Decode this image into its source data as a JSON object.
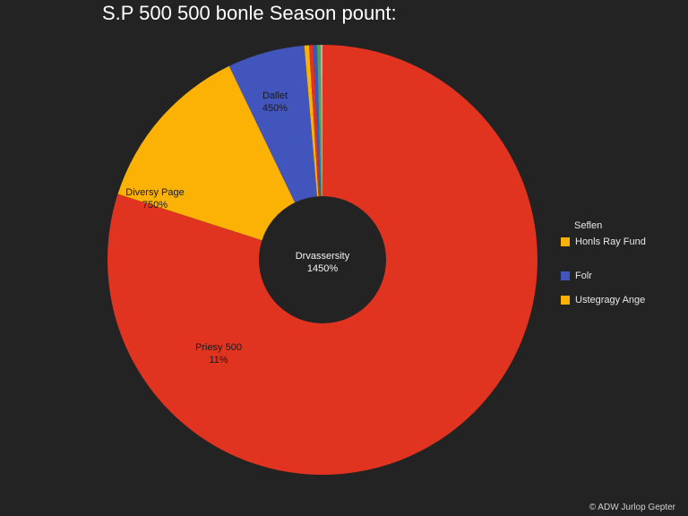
{
  "chart_data": {
    "type": "pie",
    "title": "S.P 500 500 bonle Season pount:",
    "slices": [
      {
        "label": "Priesy 500",
        "value_text": "11%",
        "share": 0.7995,
        "color": "#e03320",
        "show_label": true
      },
      {
        "label": "Diversy Page",
        "value_text": "750%",
        "share": 0.129,
        "color": "#fbb204",
        "show_label": true
      },
      {
        "label": "Dallet",
        "value_text": "450%",
        "share": 0.058,
        "color": "#4255bc",
        "show_label": true
      },
      {
        "label": "",
        "value_text": "",
        "share": 0.0035,
        "color": "#fbb204",
        "show_label": false
      },
      {
        "label": "",
        "value_text": "",
        "share": 0.003,
        "color": "#e03320",
        "show_label": false
      },
      {
        "label": "",
        "value_text": "",
        "share": 0.003,
        "color": "#4255bc",
        "show_label": false
      },
      {
        "label": "",
        "value_text": "",
        "share": 0.0025,
        "color": "#46a850",
        "show_label": false
      },
      {
        "label": "",
        "value_text": "",
        "share": 0.0015,
        "color": "#b0b0b0",
        "show_label": false
      }
    ],
    "center_label": {
      "line1": "Drvassersity",
      "line2": "1450%"
    },
    "legend": {
      "title": "Seflen",
      "placement": "right",
      "items": [
        {
          "label": "Honls Ray Fund",
          "color": "#fbb204"
        },
        {
          "label": "Folr",
          "color": "#4255bc"
        },
        {
          "label": "Ustegragy Ange",
          "color": "#fbb204"
        }
      ]
    }
  },
  "footer": {
    "credit": "© ADW Jurlop Gepter"
  }
}
